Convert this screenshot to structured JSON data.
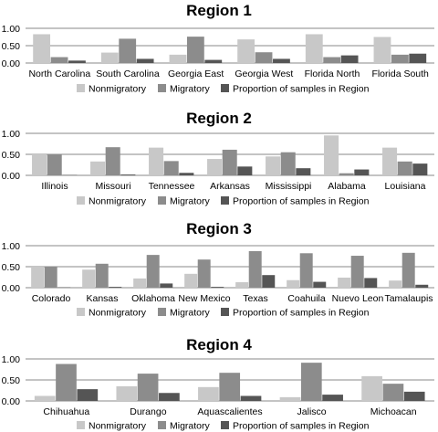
{
  "colors": {
    "nonmigratory": "#c8c8c8",
    "migratory": "#8c8c8c",
    "proportion": "#555555",
    "grid": "#888888"
  },
  "chart_data": [
    {
      "type": "bar",
      "title": "Region 1",
      "categories": [
        "North Carolina",
        "South Carolina",
        "Georgia East",
        "Georgia West",
        "Florida North",
        "Florida South"
      ],
      "yticks": [
        "0.00",
        "0.50",
        "1.00"
      ],
      "ylim": [
        0,
        1
      ],
      "grid": true,
      "legend": "bottom",
      "series": [
        {
          "name": "Nonmigratory",
          "values": [
            0.83,
            0.3,
            0.24,
            0.68,
            0.83,
            0.75
          ]
        },
        {
          "name": "Migratory",
          "values": [
            0.17,
            0.7,
            0.76,
            0.31,
            0.17,
            0.24
          ]
        },
        {
          "name": "Proportion of samples in Region",
          "values": [
            0.07,
            0.12,
            0.09,
            0.12,
            0.22,
            0.27
          ]
        }
      ]
    },
    {
      "type": "bar",
      "title": "Region 2",
      "categories": [
        "Illinois",
        "Missouri",
        "Tennessee",
        "Arkansas",
        "Mississippi",
        "Alabama",
        "Louisiana"
      ],
      "yticks": [
        "0.00",
        "0.50",
        "1.00"
      ],
      "ylim": [
        0,
        1
      ],
      "grid": true,
      "legend": "bottom",
      "series": [
        {
          "name": "Nonmigratory",
          "values": [
            0.5,
            0.33,
            0.66,
            0.39,
            0.45,
            0.95,
            0.66
          ]
        },
        {
          "name": "Migratory",
          "values": [
            0.5,
            0.67,
            0.34,
            0.61,
            0.55,
            0.05,
            0.33
          ]
        },
        {
          "name": "Proportion of samples in Region",
          "values": [
            0.01,
            0.02,
            0.06,
            0.21,
            0.17,
            0.14,
            0.28
          ]
        }
      ]
    },
    {
      "type": "bar",
      "title": "Region 3",
      "categories": [
        "Colorado",
        "Kansas",
        "Oklahoma",
        "New Mexico",
        "Texas",
        "Coahuila",
        "Nuevo Leon",
        "Tamalaupis"
      ],
      "yticks": [
        "0.00",
        "0.50",
        "1.00"
      ],
      "ylim": [
        0,
        1
      ],
      "grid": true,
      "legend": "bottom",
      "series": [
        {
          "name": "Nonmigratory",
          "values": [
            0.5,
            0.43,
            0.22,
            0.33,
            0.13,
            0.18,
            0.24,
            0.17
          ]
        },
        {
          "name": "Migratory",
          "values": [
            0.5,
            0.57,
            0.78,
            0.67,
            0.87,
            0.82,
            0.76,
            0.83
          ]
        },
        {
          "name": "Proportion of samples in Region",
          "values": [
            0.01,
            0.02,
            0.1,
            0.02,
            0.3,
            0.14,
            0.23,
            0.07
          ]
        }
      ]
    },
    {
      "type": "bar",
      "title": "Region 4",
      "categories": [
        "Chihuahua",
        "Durango",
        "Aquascalientes",
        "Jalisco",
        "Michoacan"
      ],
      "yticks": [
        "0.00",
        "0.50",
        "1.00"
      ],
      "ylim": [
        0,
        1
      ],
      "grid": true,
      "legend": "bottom",
      "series": [
        {
          "name": "Nonmigratory",
          "values": [
            0.12,
            0.35,
            0.33,
            0.09,
            0.59
          ]
        },
        {
          "name": "Migratory",
          "values": [
            0.88,
            0.65,
            0.67,
            0.91,
            0.41
          ]
        },
        {
          "name": "Proportion of samples in Region",
          "values": [
            0.28,
            0.19,
            0.12,
            0.15,
            0.22
          ]
        }
      ]
    }
  ]
}
